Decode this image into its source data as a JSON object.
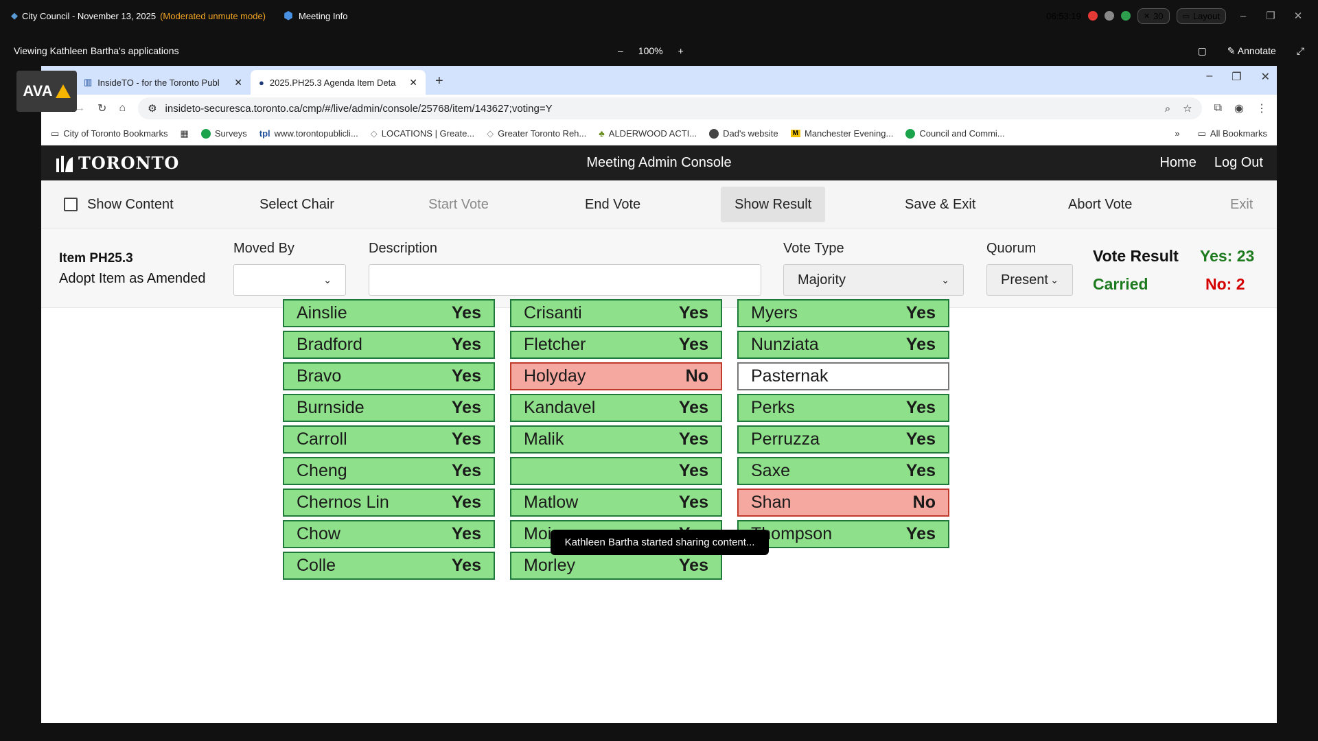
{
  "meeting": {
    "title": "City Council - November 13, 2025",
    "mode": "(Moderated unmute mode)",
    "info_label": "Meeting Info",
    "clock": "06:53:19",
    "participants": "30",
    "layout_label": "Layout"
  },
  "share": {
    "viewing": "Viewing Kathleen Bartha's applications",
    "zoom": "100%",
    "annotate_label": "Annotate",
    "toast": "Kathleen Bartha started sharing content..."
  },
  "ava_label": "AVA",
  "browser": {
    "tabs": [
      {
        "label": "InsideTO - for the Toronto Publ",
        "active": false
      },
      {
        "label": "2025.PH25.3 Agenda Item Deta",
        "active": true
      }
    ],
    "url": "insideto-securesca.toronto.ca/cmp/#/live/admin/console/25768/item/143627;voting=Y",
    "bookmarks": [
      {
        "label": "City of Toronto Bookmarks",
        "color": "#555555"
      },
      {
        "label": "Surveys",
        "color": "#1aa34a"
      },
      {
        "label": "www.torontopublicli...",
        "color": "#1f4e9c"
      },
      {
        "label": "LOCATIONS | Greate...",
        "color": "#888888"
      },
      {
        "label": "Greater Toronto Reh...",
        "color": "#888888"
      },
      {
        "label": "ALDERWOOD ACTI...",
        "color": "#6b8e23"
      },
      {
        "label": "Dad's website",
        "color": "#444444"
      },
      {
        "label": "Manchester Evening...",
        "color": "#f2c200"
      },
      {
        "label": "Council and Commi...",
        "color": "#1aa34a"
      }
    ],
    "all_bookmarks": "All Bookmarks"
  },
  "console": {
    "logo": "TORONTO",
    "title": "Meeting Admin Console",
    "nav": {
      "home": "Home",
      "logout": "Log Out"
    },
    "actions": {
      "show_content": "Show Content",
      "select_chair": "Select Chair",
      "start_vote": "Start Vote",
      "end_vote": "End Vote",
      "show_result": "Show Result",
      "save_exit": "Save & Exit",
      "abort_vote": "Abort Vote",
      "exit": "Exit"
    },
    "item": {
      "id": "Item PH25.3",
      "desc": "Adopt Item as Amended"
    },
    "labels": {
      "moved_by": "Moved By",
      "description": "Description",
      "vote_type": "Vote Type",
      "quorum": "Quorum"
    },
    "values": {
      "moved_by": "",
      "description": "",
      "vote_type": "Majority",
      "quorum": "Present"
    },
    "result": {
      "title": "Vote Result",
      "status": "Carried",
      "yes": "Yes: 23",
      "no": "No: 2"
    }
  },
  "votes": [
    [
      {
        "name": "Ainslie",
        "vote": "Yes"
      },
      {
        "name": "Bradford",
        "vote": "Yes"
      },
      {
        "name": "Bravo",
        "vote": "Yes"
      },
      {
        "name": "Burnside",
        "vote": "Yes"
      },
      {
        "name": "Carroll",
        "vote": "Yes"
      },
      {
        "name": "Cheng",
        "vote": "Yes"
      },
      {
        "name": "Chernos Lin",
        "vote": "Yes"
      },
      {
        "name": "Chow",
        "vote": "Yes"
      },
      {
        "name": "Colle",
        "vote": "Yes"
      }
    ],
    [
      {
        "name": "Crisanti",
        "vote": "Yes"
      },
      {
        "name": "Fletcher",
        "vote": "Yes"
      },
      {
        "name": "Holyday",
        "vote": "No"
      },
      {
        "name": "Kandavel",
        "vote": "Yes"
      },
      {
        "name": "Malik",
        "vote": "Yes"
      },
      {
        "name": "",
        "vote": "Yes"
      },
      {
        "name": "Matlow",
        "vote": "Yes"
      },
      {
        "name": "Moise",
        "vote": "Yes"
      },
      {
        "name": "Morley",
        "vote": "Yes"
      }
    ],
    [
      {
        "name": "Myers",
        "vote": "Yes"
      },
      {
        "name": "Nunziata",
        "vote": "Yes"
      },
      {
        "name": "Pasternak",
        "vote": ""
      },
      {
        "name": "Perks",
        "vote": "Yes"
      },
      {
        "name": "Perruzza",
        "vote": "Yes"
      },
      {
        "name": "Saxe",
        "vote": "Yes"
      },
      {
        "name": "Shan",
        "vote": "No"
      },
      {
        "name": "Thompson",
        "vote": "Yes"
      }
    ]
  ]
}
